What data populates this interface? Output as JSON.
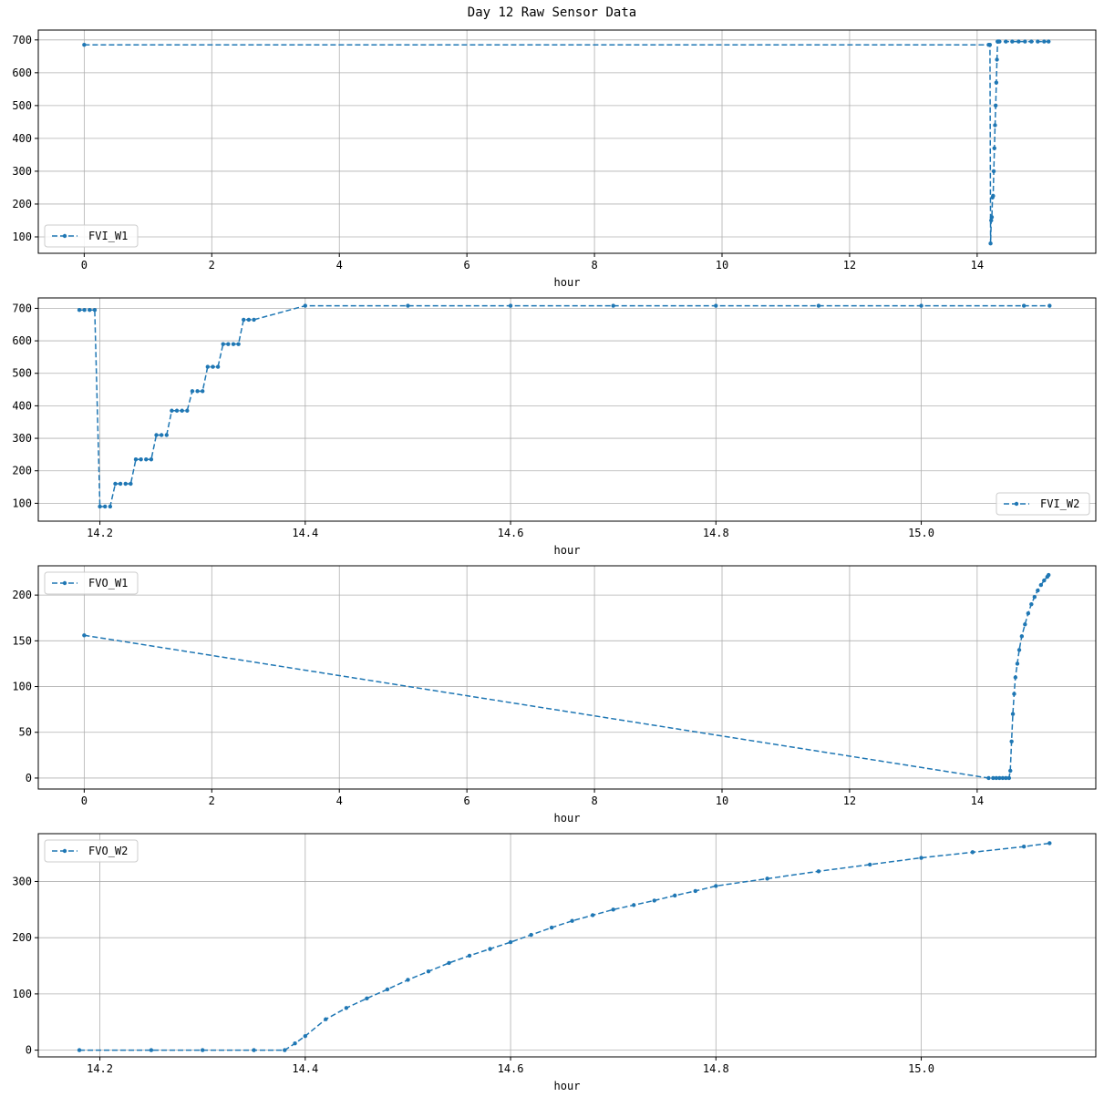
{
  "figure": {
    "title": "Day 12 Raw Sensor Data"
  },
  "colors": {
    "line": "#1f77b4",
    "grid": "#b0b0b0",
    "axis": "#000000",
    "legend_border": "#cccccc"
  },
  "chart_data": [
    {
      "type": "line",
      "title": "",
      "xlabel": "hour",
      "ylabel": "",
      "xlim": [
        -0.72,
        15.86
      ],
      "ylim": [
        50,
        730
      ],
      "xticks": [
        0,
        2,
        4,
        6,
        8,
        10,
        12,
        14
      ],
      "xtick_labels": [
        "0",
        "2",
        "4",
        "6",
        "8",
        "10",
        "12",
        "14"
      ],
      "yticks": [
        100,
        200,
        300,
        400,
        500,
        600,
        700
      ],
      "grid": true,
      "legend": "lower left",
      "series": [
        {
          "name": "FVI_W1",
          "style": "dashed-dot-markers",
          "x": [
            0,
            14.18,
            14.2,
            14.21,
            14.22,
            14.23,
            14.24,
            14.25,
            14.26,
            14.27,
            14.28,
            14.29,
            14.3,
            14.31,
            14.32,
            14.33,
            14.34,
            14.35,
            14.45,
            14.55,
            14.65,
            14.75,
            14.85,
            14.95,
            15.05,
            15.12
          ],
          "y": [
            685,
            685,
            685,
            80,
            150,
            160,
            220,
            225,
            300,
            370,
            440,
            500,
            570,
            640,
            695,
            695,
            695,
            695,
            695,
            695,
            695,
            695,
            695,
            695,
            695,
            695
          ]
        }
      ]
    },
    {
      "type": "line",
      "title": "",
      "xlabel": "hour",
      "ylabel": "",
      "xlim": [
        14.14,
        15.17
      ],
      "ylim": [
        45,
        732
      ],
      "xticks": [
        14.2,
        14.4,
        14.6,
        14.8,
        15.0
      ],
      "xtick_labels": [
        "14.2",
        "14.4",
        "14.6",
        "14.8",
        "15.0"
      ],
      "yticks": [
        100,
        200,
        300,
        400,
        500,
        600,
        700
      ],
      "grid": true,
      "legend": "lower right",
      "series": [
        {
          "name": "FVI_W2",
          "style": "dashed-dot-markers",
          "x": [
            14.18,
            14.185,
            14.19,
            14.195,
            14.2,
            14.205,
            14.21,
            14.215,
            14.22,
            14.225,
            14.23,
            14.235,
            14.24,
            14.245,
            14.25,
            14.255,
            14.26,
            14.265,
            14.27,
            14.275,
            14.28,
            14.285,
            14.29,
            14.295,
            14.3,
            14.305,
            14.31,
            14.315,
            14.32,
            14.325,
            14.33,
            14.335,
            14.34,
            14.345,
            14.35,
            14.4,
            14.5,
            14.6,
            14.7,
            14.8,
            14.9,
            15.0,
            15.1,
            15.125
          ],
          "y": [
            695,
            695,
            695,
            695,
            90,
            90,
            90,
            160,
            160,
            160,
            160,
            235,
            235,
            235,
            235,
            310,
            310,
            310,
            385,
            385,
            385,
            385,
            445,
            445,
            445,
            520,
            520,
            520,
            590,
            590,
            590,
            590,
            665,
            665,
            665,
            708,
            708,
            708,
            708,
            708,
            708,
            708,
            708,
            708
          ]
        }
      ]
    },
    {
      "type": "line",
      "title": "",
      "xlabel": "hour",
      "ylabel": "",
      "xlim": [
        -0.72,
        15.86
      ],
      "ylim": [
        -12,
        232
      ],
      "xticks": [
        0,
        2,
        4,
        6,
        8,
        10,
        12,
        14
      ],
      "xtick_labels": [
        "0",
        "2",
        "4",
        "6",
        "8",
        "10",
        "12",
        "14"
      ],
      "yticks": [
        0,
        50,
        100,
        150,
        200
      ],
      "grid": true,
      "legend": "upper left",
      "series": [
        {
          "name": "FVO_W1",
          "style": "dashed-dot-markers",
          "x": [
            0,
            14.18,
            14.25,
            14.3,
            14.35,
            14.4,
            14.45,
            14.5,
            14.52,
            14.54,
            14.56,
            14.58,
            14.6,
            14.63,
            14.66,
            14.7,
            14.75,
            14.8,
            14.85,
            14.9,
            14.95,
            15.0,
            15.05,
            15.1,
            15.12
          ],
          "y": [
            156,
            0,
            0,
            0,
            0,
            0,
            0,
            0,
            8,
            40,
            70,
            92,
            110,
            125,
            140,
            155,
            168,
            180,
            190,
            198,
            205,
            211,
            216,
            220,
            222
          ]
        }
      ]
    },
    {
      "type": "line",
      "title": "",
      "xlabel": "hour",
      "ylabel": "",
      "xlim": [
        14.14,
        15.17
      ],
      "ylim": [
        -12,
        385
      ],
      "xticks": [
        14.2,
        14.4,
        14.6,
        14.8,
        15.0
      ],
      "xtick_labels": [
        "14.2",
        "14.4",
        "14.6",
        "14.8",
        "15.0"
      ],
      "yticks": [
        0,
        100,
        200,
        300
      ],
      "grid": true,
      "legend": "upper left",
      "series": [
        {
          "name": "FVO_W2",
          "style": "dashed-dot-markers",
          "x": [
            14.18,
            14.25,
            14.3,
            14.35,
            14.38,
            14.39,
            14.4,
            14.42,
            14.44,
            14.46,
            14.48,
            14.5,
            14.52,
            14.54,
            14.56,
            14.58,
            14.6,
            14.62,
            14.64,
            14.66,
            14.68,
            14.7,
            14.72,
            14.74,
            14.76,
            14.78,
            14.8,
            14.85,
            14.9,
            14.95,
            15.0,
            15.05,
            15.1,
            15.125
          ],
          "y": [
            0,
            0,
            0,
            0,
            0,
            12,
            25,
            55,
            75,
            92,
            108,
            125,
            140,
            155,
            168,
            180,
            192,
            205,
            218,
            230,
            240,
            250,
            258,
            266,
            275,
            283,
            292,
            305,
            318,
            330,
            342,
            352,
            362,
            368
          ]
        }
      ]
    }
  ]
}
